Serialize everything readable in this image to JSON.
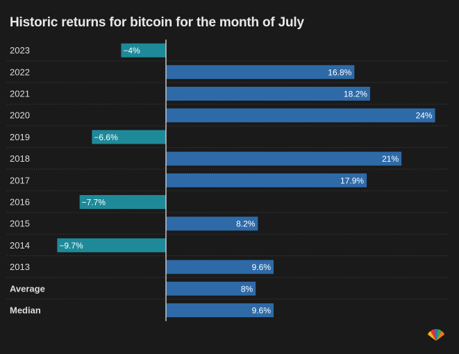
{
  "title": "Historic returns for bitcoin for the month of July",
  "colors": {
    "background": "#1a1a1a",
    "positive": "#2e6aa8",
    "negative": "#1e8a99",
    "grid": "#444444",
    "zero_line": "#c8c8c8"
  },
  "logo": {
    "name": "peacock-logo"
  },
  "chart_data": {
    "type": "bar",
    "orientation": "horizontal",
    "title": "Historic returns for bitcoin for the month of July",
    "xlabel": "",
    "ylabel": "",
    "xlim": [
      -12,
      25
    ],
    "grid": true,
    "categories": [
      "2023",
      "2022",
      "2021",
      "2020",
      "2019",
      "2018",
      "2017",
      "2016",
      "2015",
      "2014",
      "2013",
      "Average",
      "Median"
    ],
    "bold_categories": [
      "Average",
      "Median"
    ],
    "values": [
      -4,
      16.8,
      18.2,
      24,
      -6.6,
      21,
      17.9,
      -7.7,
      8.2,
      -9.7,
      9.6,
      8,
      9.6
    ],
    "value_labels": [
      "−4%",
      "16.8%",
      "18.2%",
      "24%",
      "−6.6%",
      "21%",
      "17.9%",
      "−7.7%",
      "8.2%",
      "−9.7%",
      "9.6%",
      "8%",
      "9.6%"
    ]
  }
}
